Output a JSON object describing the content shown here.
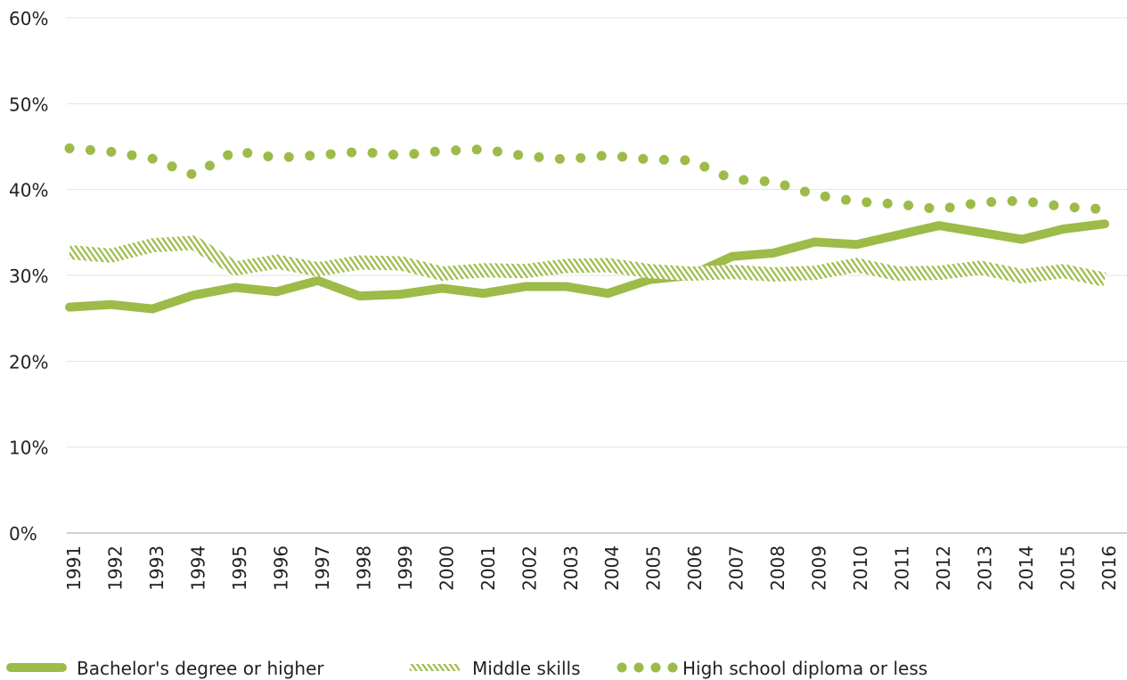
{
  "chart_data": {
    "type": "line",
    "categories": [
      "1991",
      "1992",
      "1993",
      "1994",
      "1995",
      "1996",
      "1997",
      "1998",
      "1999",
      "2000",
      "2001",
      "2002",
      "2003",
      "2004",
      "2005",
      "2006",
      "2007",
      "2008",
      "2009",
      "2010",
      "2011",
      "2012",
      "2013",
      "2014",
      "2015",
      "2016"
    ],
    "series": [
      {
        "name": "Bachelor's degree or higher",
        "color": "#9dbb48",
        "style": "solid",
        "values": [
          26.3,
          26.6,
          26.1,
          27.7,
          28.6,
          28.1,
          29.4,
          27.6,
          27.8,
          28.5,
          27.9,
          28.7,
          28.7,
          27.9,
          29.5,
          30.0,
          32.2,
          32.6,
          33.9,
          33.6,
          34.7,
          35.8,
          35.0,
          34.2,
          35.4,
          36.0
        ]
      },
      {
        "name": "Middle skills",
        "color": "#9dbb48",
        "style": "hatched",
        "values": [
          32.7,
          32.3,
          33.5,
          33.8,
          30.8,
          31.6,
          30.7,
          31.5,
          31.4,
          30.2,
          30.6,
          30.5,
          31.1,
          31.2,
          30.5,
          30.2,
          30.4,
          30.1,
          30.3,
          31.2,
          30.2,
          30.3,
          30.9,
          29.9,
          30.5,
          29.5
        ]
      },
      {
        "name": "High school diploma or less",
        "color": "#9dbb48",
        "style": "dotted",
        "values": [
          44.8,
          44.4,
          43.6,
          41.7,
          44.5,
          43.7,
          44.0,
          44.4,
          44.0,
          44.5,
          44.7,
          43.9,
          43.5,
          44.0,
          43.5,
          43.4,
          41.2,
          40.9,
          39.4,
          38.6,
          38.3,
          37.7,
          38.5,
          38.7,
          38.0,
          37.7
        ]
      }
    ],
    "ylim": [
      0,
      60
    ],
    "yticks": [
      {
        "value": 0,
        "label": "0%"
      },
      {
        "value": 10,
        "label": "10%"
      },
      {
        "value": 20,
        "label": "20%"
      },
      {
        "value": 30,
        "label": "30%"
      },
      {
        "value": 40,
        "label": "40%"
      },
      {
        "value": 50,
        "label": "50%"
      },
      {
        "value": 60,
        "label": "60%"
      }
    ],
    "grid": true,
    "legend": "bottom"
  }
}
